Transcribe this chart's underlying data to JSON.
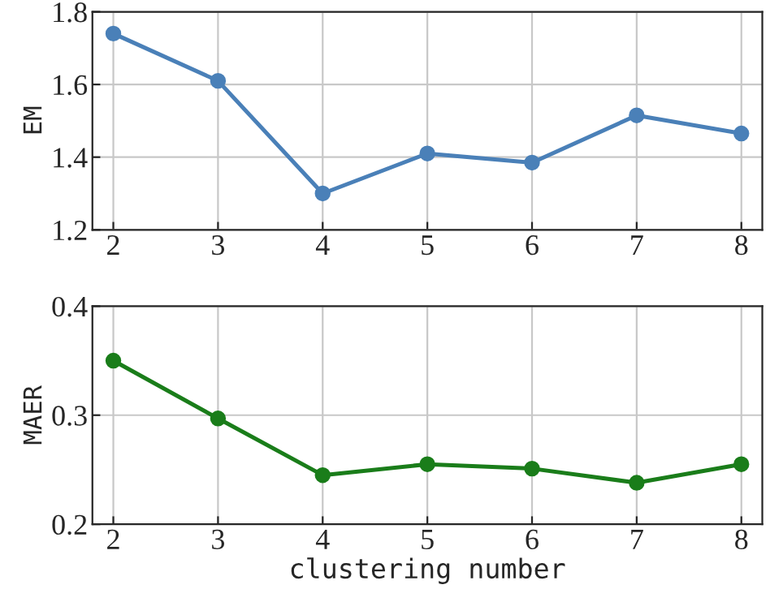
{
  "chart_data": [
    {
      "type": "line",
      "ylabel": "EM",
      "x": [
        2,
        3,
        4,
        5,
        6,
        7,
        8
      ],
      "xlim": [
        1.8,
        8.2
      ],
      "xticks": [
        2,
        3,
        4,
        5,
        6,
        7,
        8
      ],
      "ylim": [
        1.2,
        1.8
      ],
      "yticks": [
        1.2,
        1.4,
        1.6,
        1.8
      ],
      "grid": true,
      "marker": "circle",
      "line_style": "solid",
      "series": [
        {
          "color": "#4a80b8",
          "values": [
            1.74,
            1.61,
            1.3,
            1.41,
            1.385,
            1.515,
            1.465
          ]
        }
      ]
    },
    {
      "type": "line",
      "ylabel": "MAER",
      "xlabel": "clustering number",
      "x": [
        2,
        3,
        4,
        5,
        6,
        7,
        8
      ],
      "xlim": [
        1.8,
        8.2
      ],
      "xticks": [
        2,
        3,
        4,
        5,
        6,
        7,
        8
      ],
      "ylim": [
        0.2,
        0.4
      ],
      "yticks": [
        0.2,
        0.3,
        0.4
      ],
      "grid": true,
      "marker": "circle",
      "line_style": "solid",
      "series": [
        {
          "color": "#1a7d1a",
          "values": [
            0.35,
            0.297,
            0.245,
            0.255,
            0.251,
            0.238,
            0.255
          ]
        }
      ]
    }
  ]
}
